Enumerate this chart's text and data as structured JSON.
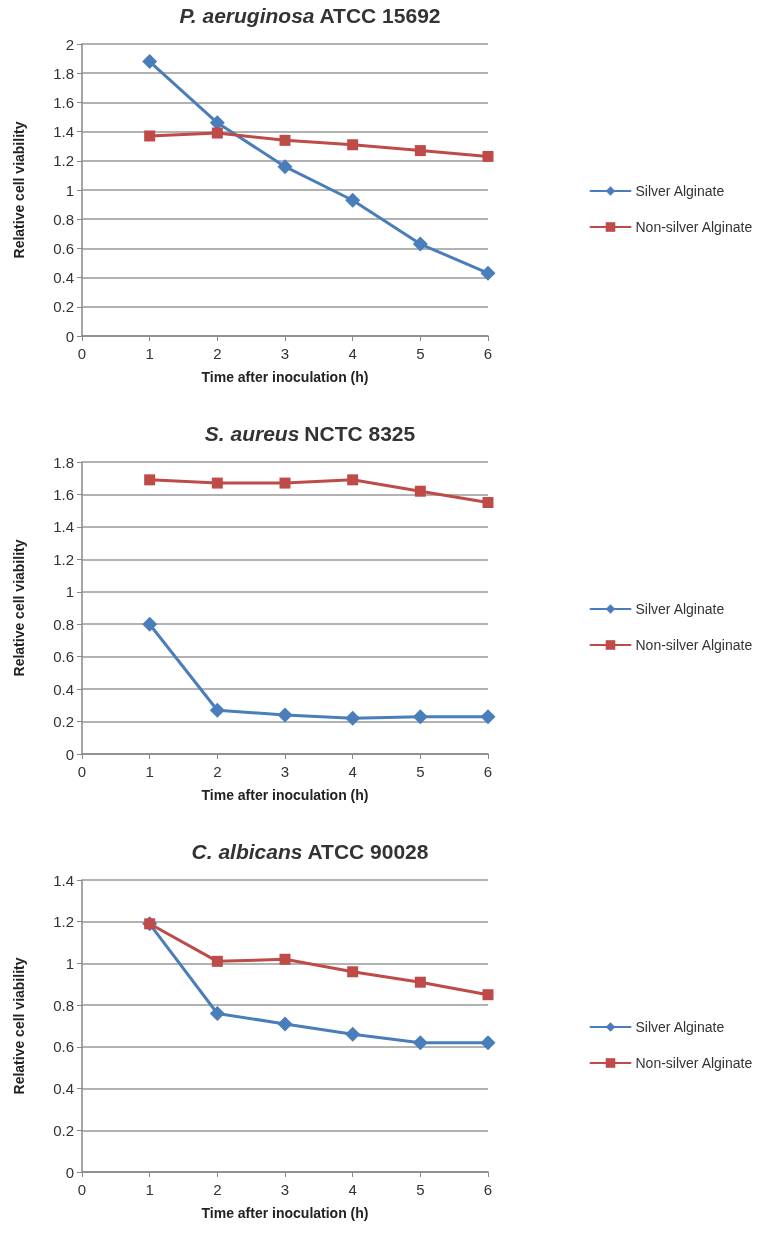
{
  "chart_data": [
    {
      "type": "line",
      "title": "P. aeruginosa ATCC 15692",
      "xlabel": "Time after inoculation (h)",
      "ylabel": "Relative cell viability",
      "x": [
        1,
        2,
        3,
        4,
        5,
        6
      ],
      "xlim": [
        0,
        6
      ],
      "xticks": [
        0,
        1,
        2,
        3,
        4,
        5,
        6
      ],
      "ylim": [
        0,
        2
      ],
      "yticks": [
        0,
        0.2,
        0.4,
        0.6,
        0.8,
        1,
        1.2,
        1.4,
        1.6,
        1.8,
        2
      ],
      "grid": "y",
      "legend": "right",
      "line_style": "solid",
      "series": [
        {
          "name": "Silver Alginate",
          "color": "#4a7ebb",
          "marker": "diamond",
          "values": [
            1.88,
            1.46,
            1.16,
            0.93,
            0.63,
            0.43
          ]
        },
        {
          "name": "Non-silver Alginate",
          "color": "#be4b48",
          "marker": "square",
          "values": [
            1.37,
            1.39,
            1.34,
            1.31,
            1.27,
            1.23
          ]
        }
      ]
    },
    {
      "type": "line",
      "title": "S. aureus NCTC 8325",
      "xlabel": "Time after inoculation (h)",
      "ylabel": "Relative cell viability",
      "x": [
        1,
        2,
        3,
        4,
        5,
        6
      ],
      "xlim": [
        0,
        6
      ],
      "xticks": [
        0,
        1,
        2,
        3,
        4,
        5,
        6
      ],
      "ylim": [
        0,
        1.8
      ],
      "yticks": [
        0,
        0.2,
        0.4,
        0.6,
        0.8,
        1,
        1.2,
        1.4,
        1.6,
        1.8
      ],
      "grid": "y",
      "legend": "right",
      "line_style": "solid",
      "series": [
        {
          "name": "Silver Alginate",
          "color": "#4a7ebb",
          "marker": "diamond",
          "values": [
            0.8,
            0.27,
            0.24,
            0.22,
            0.23,
            0.23
          ]
        },
        {
          "name": "Non-silver Alginate",
          "color": "#be4b48",
          "marker": "square",
          "values": [
            1.69,
            1.67,
            1.67,
            1.69,
            1.62,
            1.55
          ]
        }
      ]
    },
    {
      "type": "line",
      "title": "C. albicans ATCC 90028",
      "xlabel": "Time after inoculation (h)",
      "ylabel": "Relative cell viability",
      "x": [
        1,
        2,
        3,
        4,
        5,
        6
      ],
      "xlim": [
        0,
        6
      ],
      "xticks": [
        0,
        1,
        2,
        3,
        4,
        5,
        6
      ],
      "ylim": [
        0,
        1.4
      ],
      "yticks": [
        0,
        0.2,
        0.4,
        0.6,
        0.8,
        1,
        1.2,
        1.4
      ],
      "grid": "y",
      "legend": "right",
      "line_style": "solid",
      "series": [
        {
          "name": "Silver Alginate",
          "color": "#4a7ebb",
          "marker": "diamond",
          "values": [
            1.19,
            0.76,
            0.71,
            0.66,
            0.62,
            0.62
          ]
        },
        {
          "name": "Non-silver Alginate",
          "color": "#be4b48",
          "marker": "square",
          "values": [
            1.19,
            1.01,
            1.02,
            0.96,
            0.91,
            0.85
          ]
        }
      ]
    }
  ]
}
